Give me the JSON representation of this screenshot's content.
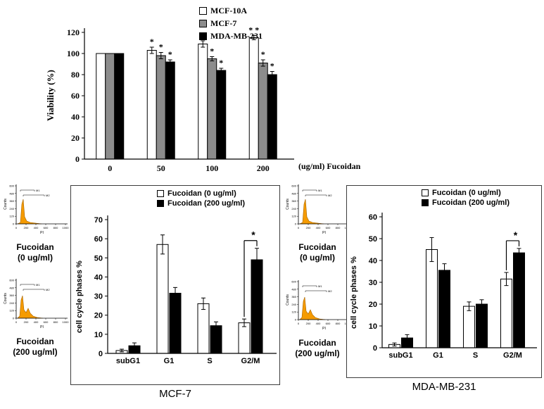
{
  "figure_background": "#ffffff",
  "chart_data": {
    "viability": {
      "type": "bar",
      "ylabel": "Viability (%)",
      "xaxis_note": "(ug/ml) Fucoidan",
      "ylim": [
        0,
        120
      ],
      "ytick_step": 20,
      "categories": [
        "0",
        "50",
        "100",
        "200"
      ],
      "series": [
        {
          "name": "MCF-10A",
          "color": "#ffffff",
          "values": [
            100,
            103,
            109,
            115
          ],
          "errors": [
            0,
            3,
            3,
            2
          ],
          "stars": [
            "",
            "*",
            "*",
            "* *"
          ]
        },
        {
          "name": "MCF-7",
          "color": "#8c8c8c",
          "values": [
            100,
            98,
            95,
            91
          ],
          "errors": [
            0,
            3,
            2,
            3
          ],
          "stars": [
            "",
            "*",
            "*",
            "*"
          ]
        },
        {
          "name": "MDA-MB-231",
          "color": "#000000",
          "values": [
            100,
            92,
            84,
            80
          ],
          "errors": [
            0,
            2,
            2,
            3
          ],
          "stars": [
            "",
            "*",
            "*",
            "*"
          ]
        }
      ]
    },
    "mcf7": {
      "type": "bar",
      "title": "MCF-7",
      "ylabel": "cell cycle phases %",
      "ylim": [
        0,
        70
      ],
      "ytick_step": 10,
      "categories": [
        "subG1",
        "G1",
        "S",
        "G2/M"
      ],
      "series": [
        {
          "name": "Fucoidan (0 ug/ml)",
          "color": "#ffffff",
          "values": [
            1.5,
            57,
            26,
            16
          ],
          "errors": [
            0.7,
            5,
            3,
            2
          ]
        },
        {
          "name": "Fucoidan (200 ug/ml)",
          "color": "#000000",
          "values": [
            4,
            31.5,
            14.5,
            49
          ],
          "errors": [
            1.5,
            3,
            2,
            6
          ]
        }
      ],
      "significance": {
        "category": "G2/M",
        "label": "*"
      }
    },
    "mda": {
      "type": "bar",
      "title": "MDA-MB-231",
      "ylabel": "cell cycle phases %",
      "ylim": [
        0,
        60
      ],
      "ytick_step": 10,
      "categories": [
        "subG1",
        "G1",
        "S",
        "G2/M"
      ],
      "series": [
        {
          "name": "Fucoidan (0 ug/ml)",
          "color": "#ffffff",
          "values": [
            1.5,
            45,
            19,
            31.5
          ],
          "errors": [
            0.7,
            5.5,
            2,
            3
          ]
        },
        {
          "name": "Fucoidan (200 ug/ml)",
          "color": "#000000",
          "values": [
            4.5,
            35.5,
            20,
            43.5
          ],
          "errors": [
            1.5,
            3,
            2,
            2
          ]
        }
      ],
      "significance": {
        "category": "G2/M",
        "label": "*"
      }
    },
    "flow_panels": [
      {
        "id": "mcf7-0",
        "shape": "narrow",
        "label_lines": [
          "Fucoidan",
          "(0 ug/ml)"
        ]
      },
      {
        "id": "mcf7-200",
        "shape": "wide",
        "label_lines": [
          "Fucoidan",
          "(200 ug/ml)"
        ]
      },
      {
        "id": "mda-0",
        "shape": "narrow",
        "label_lines": [
          "Fucoidan",
          "(0 ug/ml)"
        ]
      },
      {
        "id": "mda-200",
        "shape": "wide",
        "label_lines": [
          "Fucoidan",
          "(200 ug/ml)"
        ]
      }
    ],
    "flow_axes": {
      "x_label": "PI",
      "y_label": "Counts",
      "x_ticks": [
        "0",
        "200",
        "400",
        "600",
        "800",
        "1000"
      ],
      "y_ticks": [
        "0",
        "120",
        "240",
        "360",
        "480",
        "600"
      ],
      "gates": [
        "M1",
        "M2"
      ],
      "peak_color": "#f59b00"
    }
  }
}
